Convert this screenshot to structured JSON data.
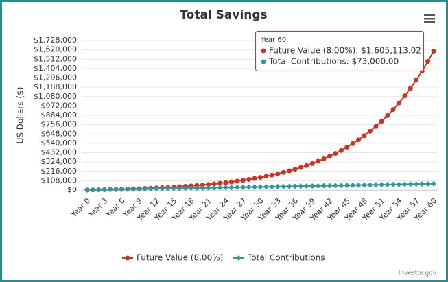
{
  "chart_data": {
    "type": "line",
    "title": "Total Savings",
    "y_label": "US Dollars ($)",
    "credit": "Investor.gov",
    "categories": [
      "Year 0",
      null,
      null,
      "Year 3",
      null,
      null,
      "Year 6",
      null,
      null,
      "Year 9",
      null,
      null,
      "Year 12",
      null,
      null,
      "Year 15",
      null,
      null,
      "Year 18",
      null,
      null,
      "Year 21",
      null,
      null,
      "Year 24",
      null,
      null,
      "Year 27",
      null,
      null,
      "Year 30",
      null,
      null,
      "Year 33",
      null,
      null,
      "Year 36",
      null,
      null,
      "Year 39",
      null,
      null,
      "Year 42",
      null,
      null,
      "Year 45",
      null,
      null,
      "Year 48",
      null,
      null,
      "Year 51",
      null,
      null,
      "Year 54",
      null,
      null,
      "Year 57",
      null,
      null,
      "Year 60"
    ],
    "series": [
      {
        "name": "Future Value (8.00%)",
        "color": "#cc3322",
        "marker": "circle",
        "values": [
          1000,
          2280,
          3662,
          5155,
          6768,
          8509,
          10390,
          12421,
          14615,
          16984,
          19543,
          22306,
          25291,
          28514,
          31995,
          35755,
          39815,
          44200,
          48936,
          54051,
          59575,
          65541,
          71985,
          78943,
          86459,
          94576,
          103342,
          112809,
          123034,
          134076,
          146003,
          158883,
          172793,
          187817,
          204042,
          221566,
          240491,
          260930,
          283004,
          306845,
          332592,
          360400,
          390432,
          422866,
          457896,
          495727,
          536585,
          580712,
          628369,
          679839,
          735426,
          795460,
          860297,
          930320,
          1005946,
          1087622,
          1175831,
          1271098,
          1373986,
          1485105,
          1605113.02
        ]
      },
      {
        "name": "Total Contributions",
        "color": "#2a9a9a",
        "marker": "diamond",
        "values": [
          1000,
          2200,
          3400,
          4600,
          5800,
          7000,
          8200,
          9400,
          10600,
          11800,
          13000,
          14200,
          15400,
          16600,
          17800,
          19000,
          20200,
          21400,
          22600,
          23800,
          25000,
          26200,
          27400,
          28600,
          29800,
          31000,
          32200,
          33400,
          34600,
          35800,
          37000,
          38200,
          39400,
          40600,
          41800,
          43000,
          44200,
          45400,
          46600,
          47800,
          49000,
          50200,
          51400,
          52600,
          53800,
          55000,
          56200,
          57400,
          58600,
          59800,
          61000,
          62200,
          63400,
          64600,
          65800,
          67000,
          68200,
          69400,
          70600,
          71800,
          73000
        ]
      }
    ],
    "ylim": [
      0,
      1728000
    ],
    "yticks": [
      {
        "value": 0,
        "label": "$0"
      },
      {
        "value": 108000,
        "label": "$108,000"
      },
      {
        "value": 216000,
        "label": "$216,000"
      },
      {
        "value": 324000,
        "label": "$324,000"
      },
      {
        "value": 432000,
        "label": "$432,000"
      },
      {
        "value": 540000,
        "label": "$540,000"
      },
      {
        "value": 648000,
        "label": "$648,000"
      },
      {
        "value": 756000,
        "label": "$756,000"
      },
      {
        "value": 864000,
        "label": "$864,000"
      },
      {
        "value": 972000,
        "label": "$972,000"
      },
      {
        "value": 1080000,
        "label": "$1,080,000"
      },
      {
        "value": 1188000,
        "label": "$1,188,000"
      },
      {
        "value": 1296000,
        "label": "$1,296,000"
      },
      {
        "value": 1404000,
        "label": "$1,404,000"
      },
      {
        "value": 1512000,
        "label": "$1,512,000"
      },
      {
        "value": 1620000,
        "label": "$1,620,000"
      },
      {
        "value": 1728000,
        "label": "$1,728,000"
      }
    ],
    "grid": true,
    "tooltip": {
      "title": "Year 60",
      "lines": [
        "Future Value (8.00%): $1,605,113.02",
        "Total Contributions: $73,000.00"
      ]
    }
  }
}
